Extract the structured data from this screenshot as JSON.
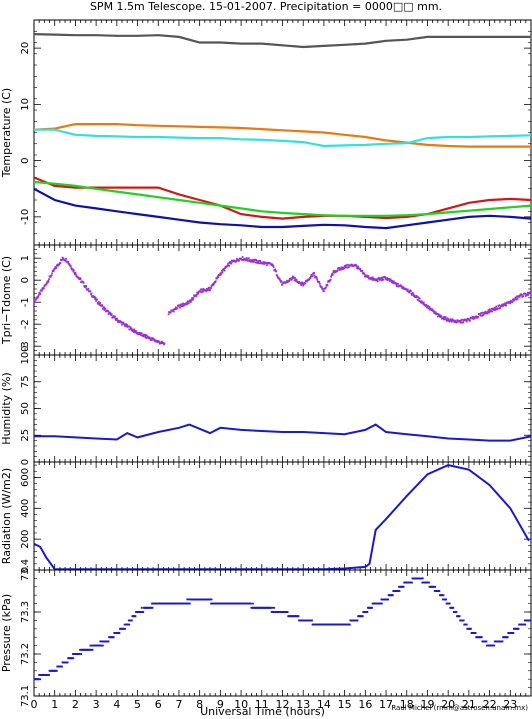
{
  "title": "SPM 1.5m Telescope. 15-01-2007. Precipitation = 0000□□ mm.",
  "credit": "Raul Michel (rmm@astrosen.unam.mx)",
  "colors": {
    "grey": "#555555",
    "orange": "#e87a10",
    "cyan": "#33e0e0",
    "red": "#d01818",
    "green": "#22d022",
    "navy": "#1010aa",
    "purple": "#9a32d0",
    "blue": "#1a1ac8"
  },
  "chart_data": [
    {
      "type": "line",
      "ylabel": "Temperature (C)",
      "ylim": [
        -15,
        25
      ],
      "yticks": [
        -10,
        0,
        10,
        20
      ],
      "grid": false,
      "series": [
        {
          "color": "grey",
          "x": [
            0,
            1,
            2,
            3,
            4,
            5,
            6,
            7,
            8,
            9,
            10,
            11,
            12,
            13,
            14,
            15,
            16,
            17,
            18,
            19,
            20,
            21,
            22,
            23,
            24
          ],
          "y": [
            22.5,
            22.4,
            22.3,
            22.3,
            22.2,
            22.2,
            22.3,
            22.0,
            21.0,
            21.0,
            20.8,
            20.8,
            20.5,
            20.2,
            20.4,
            20.6,
            20.8,
            21.3,
            21.5,
            22.0,
            22.0,
            22.0,
            22.0,
            22.0,
            22.0
          ]
        },
        {
          "color": "orange",
          "x": [
            0,
            1,
            2,
            3,
            4,
            5,
            6,
            7,
            8,
            9,
            10,
            11,
            12,
            13,
            14,
            15,
            16,
            17,
            18,
            19,
            20,
            21,
            22,
            23,
            24
          ],
          "y": [
            5.5,
            5.7,
            6.5,
            6.5,
            6.5,
            6.3,
            6.2,
            6.1,
            6.0,
            5.9,
            5.8,
            5.6,
            5.4,
            5.2,
            5.0,
            4.6,
            4.2,
            3.6,
            3.2,
            2.8,
            2.6,
            2.5,
            2.5,
            2.5,
            2.5
          ]
        },
        {
          "color": "cyan",
          "x": [
            0,
            1,
            2,
            3,
            4,
            5,
            6,
            7,
            8,
            9,
            10,
            11,
            12,
            13,
            14,
            15,
            16,
            17,
            18,
            19,
            20,
            21,
            22,
            23,
            24
          ],
          "y": [
            5.5,
            5.5,
            4.6,
            4.4,
            4.3,
            4.2,
            4.2,
            4.1,
            4.0,
            4.0,
            3.8,
            3.7,
            3.5,
            3.3,
            2.6,
            2.7,
            2.8,
            3.0,
            3.1,
            4.0,
            4.2,
            4.2,
            4.3,
            4.4,
            4.5
          ]
        },
        {
          "color": "red",
          "x": [
            0,
            1,
            2,
            3,
            4,
            5,
            6,
            7,
            8,
            9,
            10,
            11,
            12,
            13,
            14,
            15,
            16,
            17,
            18,
            19,
            20,
            21,
            22,
            23,
            24
          ],
          "y": [
            -3.0,
            -4.5,
            -4.8,
            -4.8,
            -4.8,
            -4.8,
            -4.8,
            -6.0,
            -7.0,
            -8.0,
            -9.5,
            -10.0,
            -10.3,
            -10.0,
            -9.8,
            -9.8,
            -10.0,
            -10.2,
            -10.0,
            -9.5,
            -8.5,
            -7.5,
            -7.0,
            -6.8,
            -7.0
          ]
        },
        {
          "color": "green",
          "x": [
            0,
            1,
            2,
            3,
            4,
            5,
            6,
            7,
            8,
            9,
            10,
            11,
            12,
            13,
            14,
            15,
            16,
            17,
            18,
            19,
            20,
            21,
            22,
            23,
            24
          ],
          "y": [
            -3.8,
            -4.1,
            -4.5,
            -5.0,
            -5.5,
            -6.0,
            -6.5,
            -7.0,
            -7.5,
            -8.0,
            -8.5,
            -9.0,
            -9.3,
            -9.5,
            -9.7,
            -9.8,
            -9.8,
            -9.8,
            -9.7,
            -9.5,
            -9.2,
            -8.9,
            -8.6,
            -8.3,
            -8.0
          ]
        },
        {
          "color": "navy",
          "x": [
            0,
            1,
            2,
            3,
            4,
            5,
            6,
            7,
            8,
            9,
            10,
            11,
            12,
            13,
            14,
            15,
            16,
            17,
            18,
            19,
            20,
            21,
            22,
            23,
            24
          ],
          "y": [
            -5.0,
            -7.0,
            -8.0,
            -8.5,
            -9.0,
            -9.5,
            -10.0,
            -10.5,
            -11.0,
            -11.3,
            -11.5,
            -11.8,
            -11.8,
            -11.6,
            -11.4,
            -11.5,
            -11.8,
            -12.0,
            -11.5,
            -11.0,
            -10.5,
            -10.0,
            -9.8,
            -10.0,
            -10.3
          ]
        }
      ]
    },
    {
      "type": "scatter",
      "ylabel": "Tpri−Tdome (C)",
      "ylim": [
        -3.4,
        1.6
      ],
      "yticks": [
        -3,
        -2,
        -1,
        0,
        1
      ],
      "color": "purple",
      "series": [
        {
          "x": [
            0,
            0.5,
            1.0,
            1.4,
            1.6,
            2.0,
            2.5,
            3.0,
            3.5,
            4.0,
            4.5,
            5.0,
            5.5,
            6.0,
            6.3
          ],
          "y": [
            -1.0,
            -0.3,
            0.5,
            1.0,
            0.9,
            0.3,
            -0.3,
            -0.9,
            -1.4,
            -1.8,
            -2.1,
            -2.4,
            -2.6,
            -2.8,
            -2.9
          ]
        },
        {
          "x": [
            6.5,
            7.0,
            7.5,
            8.0,
            8.5,
            9.0,
            9.5,
            10.0,
            10.5,
            11.0,
            11.5,
            12.0,
            12.5,
            13.0,
            13.5,
            14.0,
            14.5,
            15.0,
            15.5,
            16.0,
            16.5,
            17.0,
            17.5,
            18.0,
            18.5,
            19.0,
            19.5,
            20.0,
            20.5,
            21.0,
            21.5,
            22.0,
            22.5,
            23.0,
            23.5,
            24.0
          ],
          "y": [
            -1.5,
            -1.2,
            -1.0,
            -0.5,
            -0.4,
            0.3,
            0.8,
            1.0,
            0.9,
            0.8,
            0.7,
            -0.2,
            0.1,
            -0.2,
            0.3,
            -0.5,
            0.4,
            0.6,
            0.7,
            0.2,
            0.0,
            0.1,
            -0.2,
            -0.4,
            -0.8,
            -1.2,
            -1.6,
            -1.8,
            -1.9,
            -1.8,
            -1.6,
            -1.4,
            -1.2,
            -1.0,
            -0.7,
            -0.6
          ]
        }
      ]
    },
    {
      "type": "line",
      "ylabel": "Humidity (%)",
      "ylim": [
        0,
        100
      ],
      "yticks": [
        0,
        25,
        50,
        75,
        100
      ],
      "color": "blue",
      "series": [
        {
          "x": [
            0,
            1,
            2,
            3,
            4,
            4.5,
            5,
            6,
            7,
            7.5,
            8,
            8.5,
            9,
            10,
            11,
            12,
            13,
            14,
            15,
            16,
            16.5,
            17,
            18,
            19,
            20,
            21,
            22,
            23,
            24
          ],
          "y": [
            24,
            24,
            23,
            22,
            21,
            27,
            23,
            28,
            32,
            35,
            31,
            27,
            32,
            30,
            29,
            28,
            28,
            27,
            26,
            30,
            35,
            28,
            26,
            24,
            22,
            21,
            20,
            20,
            24
          ]
        }
      ]
    },
    {
      "type": "line",
      "ylabel": "Radiation (W/m2)",
      "ylim": [
        0,
        700
      ],
      "yticks": [
        0,
        200,
        400,
        600
      ],
      "color": "blue",
      "series": [
        {
          "x": [
            0,
            0.3,
            0.6,
            1.0,
            2,
            4,
            6,
            8,
            10,
            12,
            14,
            15,
            16,
            16.2,
            16.5,
            17,
            18,
            19,
            20,
            21,
            22,
            23,
            23.9
          ],
          "y": [
            170,
            150,
            80,
            5,
            5,
            5,
            5,
            5,
            5,
            5,
            5,
            10,
            20,
            40,
            260,
            330,
            480,
            620,
            680,
            650,
            550,
            400,
            190
          ]
        }
      ]
    },
    {
      "type": "scatter",
      "ylabel": "Pressure (kPa)",
      "ylim": [
        73.1,
        73.4
      ],
      "yticks": [
        73.1,
        73.2,
        73.3,
        73.4
      ],
      "color": "blue",
      "xlabel": "Universal Time (hours)",
      "xlim": [
        0,
        24
      ],
      "xticks": [
        0,
        1,
        2,
        3,
        4,
        5,
        6,
        7,
        8,
        9,
        10,
        11,
        12,
        13,
        14,
        15,
        16,
        17,
        18,
        19,
        20,
        21,
        22,
        23
      ],
      "series": [
        {
          "x": [
            0,
            0.5,
            1.0,
            1.5,
            2.0,
            2.5,
            3.0,
            3.5,
            4.0,
            4.5,
            5.0,
            5.5,
            6.0,
            7.0,
            8.0,
            9.0,
            10.0,
            11.0,
            12.0,
            13.0,
            14.0,
            15.0,
            15.5,
            16.0,
            16.5,
            17.0,
            17.5,
            18.0,
            18.5,
            19.0,
            19.5,
            20.0,
            20.5,
            21.0,
            21.5,
            22.0,
            22.5,
            23.0,
            23.5,
            24.0
          ],
          "y": [
            73.14,
            73.15,
            73.16,
            73.18,
            73.2,
            73.21,
            73.22,
            73.23,
            73.25,
            73.27,
            73.3,
            73.31,
            73.32,
            73.32,
            73.33,
            73.32,
            73.32,
            73.31,
            73.3,
            73.28,
            73.27,
            73.27,
            73.28,
            73.3,
            73.32,
            73.33,
            73.35,
            73.37,
            73.38,
            73.37,
            73.35,
            73.32,
            73.29,
            73.26,
            73.24,
            73.22,
            73.23,
            73.25,
            73.27,
            73.28
          ]
        }
      ]
    }
  ]
}
